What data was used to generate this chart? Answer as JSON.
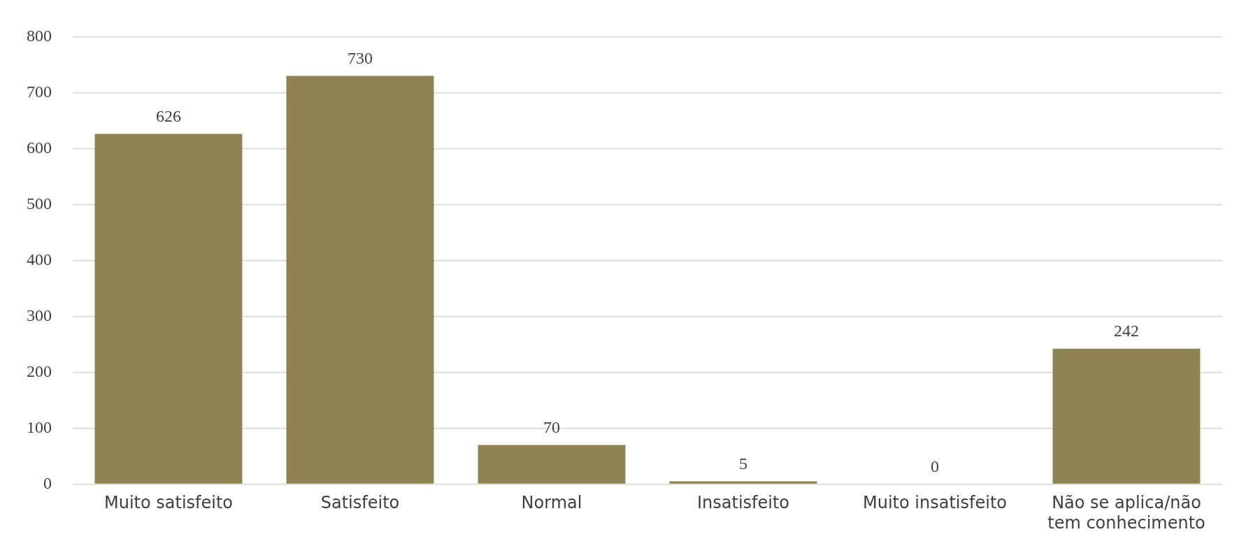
{
  "chart_data": {
    "type": "bar",
    "categories": [
      "Muito satisfeito",
      "Satisfeito",
      "Normal",
      "Insatisfeito",
      "Muito insatisfeito",
      "Não se aplica/não tem conhecimento"
    ],
    "values": [
      626,
      730,
      70,
      5,
      0,
      242
    ],
    "color": "#8e8451",
    "ylim": [
      0,
      800
    ],
    "yticks": [
      0,
      100,
      200,
      300,
      400,
      500,
      600,
      700,
      800
    ],
    "grid": "y",
    "data_labels": true
  }
}
